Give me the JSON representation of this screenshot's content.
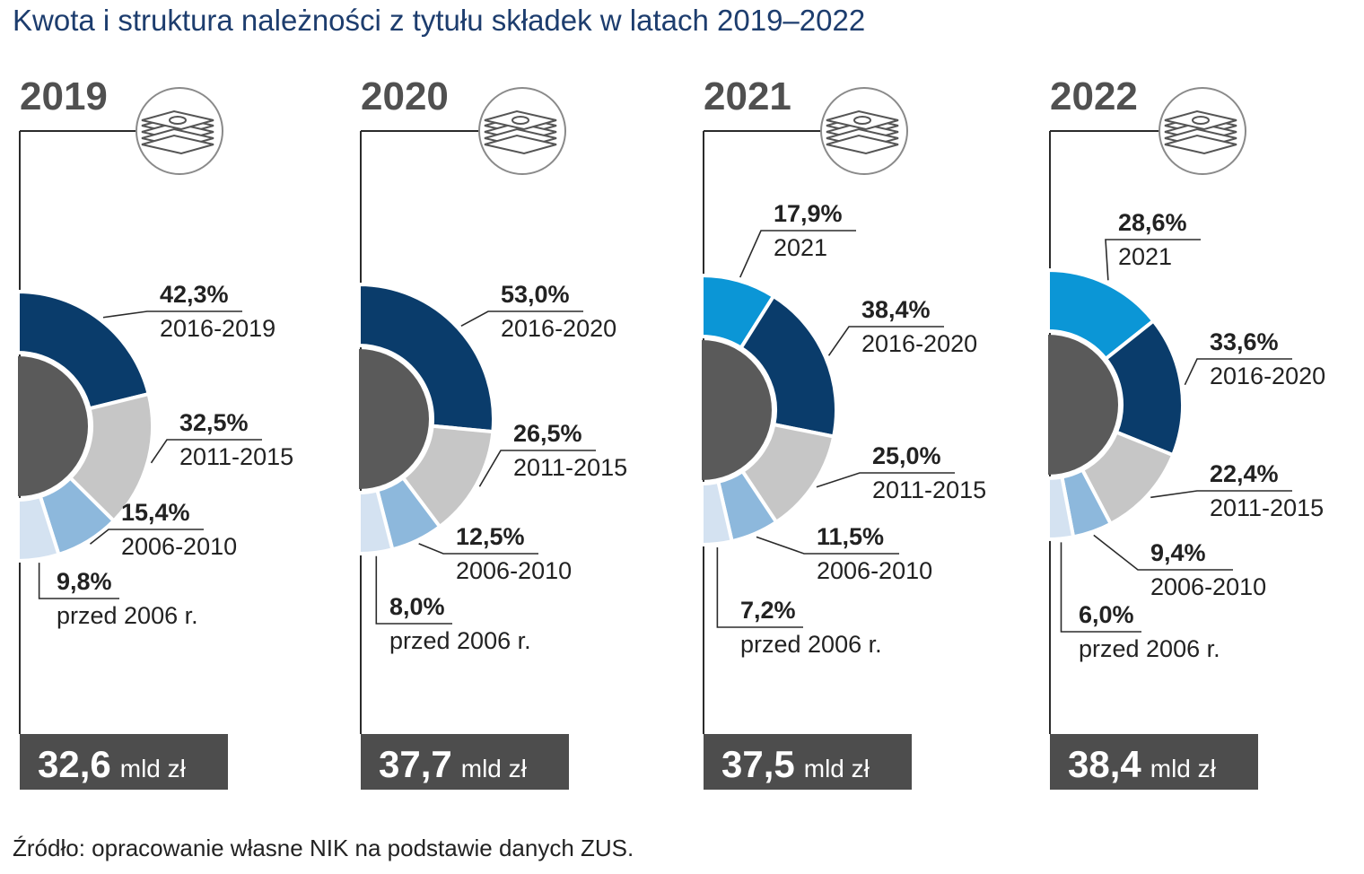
{
  "page": {
    "title": "Kwota i struktura należności z tytułu składek w latach 2019–2022",
    "source": "Źródło: opracowanie własne NIK na podstawie danych ZUS."
  },
  "colors": {
    "title": "#1d3d6e",
    "center": "#5a5a5a",
    "line": "#2b2b2b",
    "year_text": "#505050",
    "total_box": "#4d4d4d",
    "categories": {
      "2021": "#0b96d6",
      "2016-latest": "#0a3c6b",
      "2011-2015": "#c6c6c6",
      "2006-2010": "#8db8dc",
      "przed 2006 r.": "#d4e2f1"
    }
  },
  "icon": "money-stack-icon",
  "chart_data": [
    {
      "type": "pie",
      "year": "2019",
      "total": "32,6",
      "unit": "mld zł",
      "slices": [
        {
          "category": "2016-2019",
          "value": 42.3,
          "label": "42,3%",
          "color_key": "2016-latest"
        },
        {
          "category": "2011-2015",
          "value": 32.5,
          "label": "32,5%",
          "color_key": "2011-2015"
        },
        {
          "category": "2006-2010",
          "value": 15.4,
          "label": "15,4%",
          "color_key": "2006-2010"
        },
        {
          "category": "przed 2006 r.",
          "value": 9.8,
          "label": "9,8%",
          "color_key": "przed 2006 r."
        }
      ]
    },
    {
      "type": "pie",
      "year": "2020",
      "total": "37,7",
      "unit": "mld zł",
      "slices": [
        {
          "category": "2016-2020",
          "value": 53.0,
          "label": "53,0%",
          "color_key": "2016-latest"
        },
        {
          "category": "2011-2015",
          "value": 26.5,
          "label": "26,5%",
          "color_key": "2011-2015"
        },
        {
          "category": "2006-2010",
          "value": 12.5,
          "label": "12,5%",
          "color_key": "2006-2010"
        },
        {
          "category": "przed 2006 r.",
          "value": 8.0,
          "label": "8,0%",
          "color_key": "przed 2006 r."
        }
      ]
    },
    {
      "type": "pie",
      "year": "2021",
      "total": "37,5",
      "unit": "mld zł",
      "slices": [
        {
          "category": "2021",
          "value": 17.9,
          "label": "17,9%",
          "color_key": "2021"
        },
        {
          "category": "2016-2020",
          "value": 38.4,
          "label": "38,4%",
          "color_key": "2016-latest"
        },
        {
          "category": "2011-2015",
          "value": 25.0,
          "label": "25,0%",
          "color_key": "2011-2015"
        },
        {
          "category": "2006-2010",
          "value": 11.5,
          "label": "11,5%",
          "color_key": "2006-2010"
        },
        {
          "category": "przed 2006 r.",
          "value": 7.2,
          "label": "7,2%",
          "color_key": "przed 2006 r."
        }
      ]
    },
    {
      "type": "pie",
      "year": "2022",
      "total": "38,4",
      "unit": "mld zł",
      "slices": [
        {
          "category": "2021",
          "value": 28.6,
          "label": "28,6%",
          "color_key": "2021"
        },
        {
          "category": "2016-2020",
          "value": 33.6,
          "label": "33,6%",
          "color_key": "2016-latest"
        },
        {
          "category": "2011-2015",
          "value": 22.4,
          "label": "22,4%",
          "color_key": "2011-2015"
        },
        {
          "category": "2006-2010",
          "value": 9.4,
          "label": "9,4%",
          "color_key": "2006-2010"
        },
        {
          "category": "przed 2006 r.",
          "value": 6.0,
          "label": "6,0%",
          "color_key": "przed 2006 r."
        }
      ]
    }
  ]
}
